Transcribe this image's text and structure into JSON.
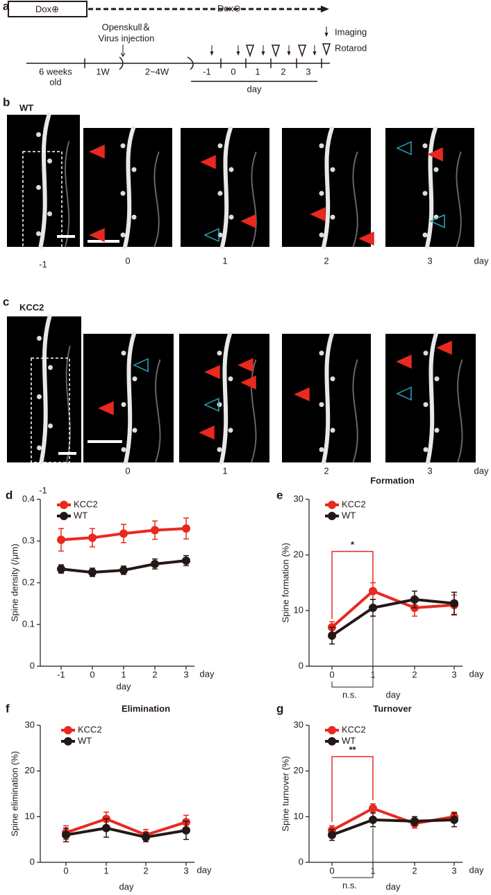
{
  "figure": {
    "a": {
      "letter": "a",
      "dox_on": "Dox⊕",
      "dox_off": "Dox⊖",
      "injection": [
        "Openskull＆",
        "Virus injection"
      ],
      "legend": [
        "Imaging",
        "Rotarod"
      ],
      "age": [
        "6 weeks",
        "old"
      ],
      "periods": [
        "1W",
        "2~4W"
      ],
      "days": [
        "-1",
        "0",
        "1",
        "2",
        "3"
      ],
      "day_label": "day"
    },
    "b": {
      "letter": "b",
      "label": "WT",
      "label_color": "#231815",
      "days": [
        "-1",
        "0",
        "1",
        "2",
        "3"
      ],
      "unit": "day"
    },
    "c": {
      "letter": "c",
      "label": "KCC2",
      "label_color": "#e8291f",
      "days": [
        "-1",
        "0",
        "1",
        "2",
        "3"
      ],
      "unit": "day"
    }
  },
  "chart_data": [
    {
      "type": "line",
      "panel": "d",
      "ylabel": "Spine density (/μm)",
      "xlabel": "day",
      "x_unit": "day",
      "categories": [
        "-1",
        "0",
        "1",
        "2",
        "3"
      ],
      "ylim": [
        0,
        0.4
      ],
      "yticks": [
        0,
        0.1,
        0.2,
        0.3,
        0.4
      ],
      "legend": "upper left",
      "series": [
        {
          "name": "KCC2",
          "color": "#e8291f",
          "values": [
            0.303,
            0.308,
            0.318,
            0.326,
            0.33
          ],
          "errors": [
            0.027,
            0.022,
            0.022,
            0.022,
            0.025
          ]
        },
        {
          "name": "WT",
          "color": "#231815",
          "values": [
            0.233,
            0.225,
            0.23,
            0.245,
            0.253
          ],
          "errors": [
            0.01,
            0.01,
            0.01,
            0.012,
            0.012
          ]
        }
      ]
    },
    {
      "type": "line",
      "panel": "e",
      "title": "Formation",
      "ylabel": "Spine formation (%)",
      "xlabel": "day",
      "x_unit": "day",
      "categories": [
        "0",
        "1",
        "2",
        "3"
      ],
      "ylim": [
        0,
        30
      ],
      "yticks": [
        0,
        10,
        20,
        30
      ],
      "legend": "upper left",
      "annotations": [
        {
          "label": "*",
          "color": "#e8291f"
        },
        {
          "label": "n.s.",
          "color": "#231815"
        }
      ],
      "series": [
        {
          "name": "KCC2",
          "color": "#e8291f",
          "values": [
            7.0,
            13.5,
            10.5,
            11.0
          ],
          "errors": [
            1.0,
            1.5,
            1.5,
            1.8
          ]
        },
        {
          "name": "WT",
          "color": "#231815",
          "values": [
            5.5,
            10.5,
            12.0,
            11.3
          ],
          "errors": [
            1.5,
            1.5,
            1.5,
            2.0
          ]
        }
      ]
    },
    {
      "type": "line",
      "panel": "f",
      "title": "Elimination",
      "ylabel": "Spine elimination (%)",
      "xlabel": "day",
      "x_unit": "day",
      "categories": [
        "0",
        "1",
        "2",
        "3"
      ],
      "ylim": [
        0,
        30
      ],
      "yticks": [
        0,
        10,
        20,
        30
      ],
      "legend": "upper left",
      "series": [
        {
          "name": "KCC2",
          "color": "#e8291f",
          "values": [
            6.5,
            9.5,
            6.0,
            8.8
          ],
          "errors": [
            1.5,
            1.5,
            1.2,
            1.5
          ]
        },
        {
          "name": "WT",
          "color": "#231815",
          "values": [
            6.0,
            7.5,
            5.5,
            7.0
          ],
          "errors": [
            1.5,
            2.0,
            1.0,
            2.0
          ]
        }
      ]
    },
    {
      "type": "line",
      "panel": "g",
      "title": "Turnover",
      "ylabel": "Spine turnover (%)",
      "xlabel": "day",
      "x_unit": "day",
      "categories": [
        "0",
        "1",
        "2",
        "3"
      ],
      "ylim": [
        0,
        30
      ],
      "yticks": [
        0,
        10,
        20,
        30
      ],
      "legend": "upper left",
      "annotations": [
        {
          "label": "**",
          "color": "#e8291f"
        },
        {
          "label": "n.s.",
          "color": "#231815"
        }
      ],
      "series": [
        {
          "name": "KCC2",
          "color": "#e8291f",
          "values": [
            7.0,
            11.8,
            8.5,
            10.0
          ],
          "errors": [
            1.0,
            1.0,
            1.0,
            1.0
          ]
        },
        {
          "name": "WT",
          "color": "#231815",
          "values": [
            6.0,
            9.3,
            9.0,
            9.3
          ],
          "errors": [
            1.2,
            1.5,
            1.0,
            1.5
          ]
        }
      ]
    }
  ]
}
